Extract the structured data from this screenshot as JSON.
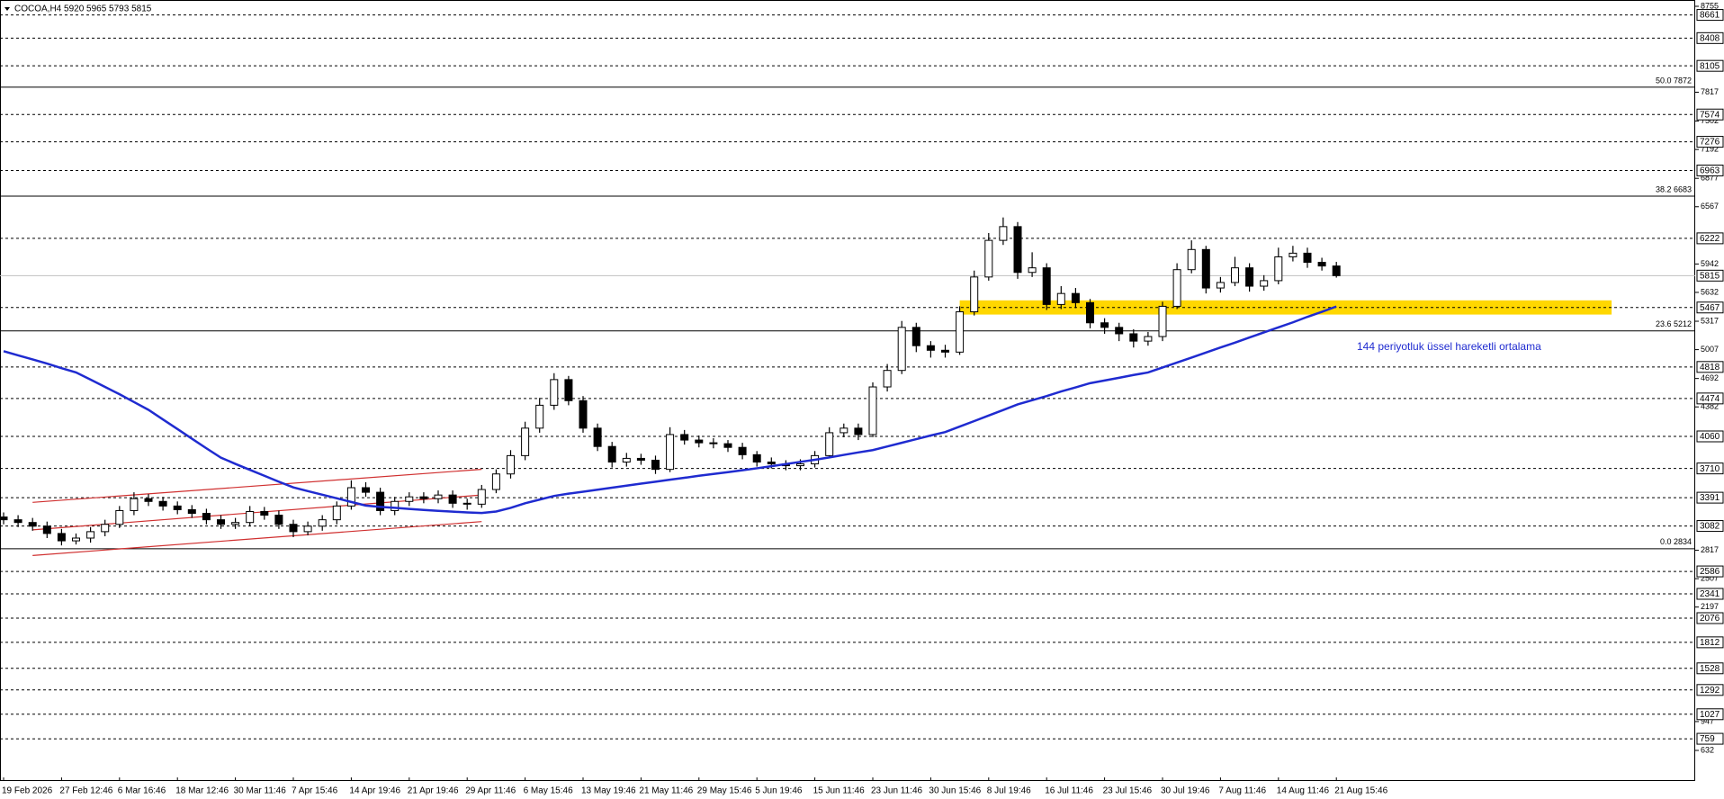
{
  "chart_data": {
    "type": "candlestick",
    "title": "COCOA,H4  5920 5965 5793 5815",
    "categories": [
      "19 Feb 2026",
      null,
      null,
      null,
      "27 Feb 12:46",
      null,
      null,
      null,
      "6 Mar 16:46",
      null,
      null,
      null,
      "18 Mar 12:46",
      null,
      null,
      null,
      "30 Mar 11:46",
      null,
      null,
      null,
      "7 Apr 15:46",
      null,
      null,
      null,
      "14 Apr 19:46",
      null,
      null,
      null,
      "21 Apr 19:46",
      null,
      null,
      null,
      "29 Apr 11:46",
      null,
      null,
      null,
      "6 May 15:46",
      null,
      null,
      null,
      "13 May 19:46",
      null,
      null,
      null,
      "21 May 11:46",
      null,
      null,
      null,
      "29 May 15:46",
      null,
      null,
      null,
      "5 Jun 19:46",
      null,
      null,
      null,
      "15 Jun 11:46",
      null,
      null,
      null,
      "23 Jun 11:46",
      null,
      null,
      null,
      "30 Jun 15:46",
      null,
      null,
      null,
      "8 Jul 19:46",
      null,
      null,
      null,
      "16 Jul 11:46",
      null,
      null,
      null,
      "23 Jul 15:46",
      null,
      null,
      null,
      "30 Jul 19:46",
      null,
      null,
      null,
      "7 Aug 11:46",
      null,
      null,
      null,
      "14 Aug 11:46",
      null,
      null,
      null,
      "21 Aug 15:46"
    ],
    "open": [
      3180,
      3150,
      3120,
      3080,
      3000,
      2920,
      2950,
      3020,
      3100,
      3250,
      3380,
      3350,
      3300,
      3260,
      3220,
      3150,
      3100,
      3120,
      3240,
      3200,
      3100,
      3020,
      3080,
      3150,
      3300,
      3500,
      3450,
      3250,
      3350,
      3400,
      3380,
      3420,
      3330,
      3320,
      3480,
      3650,
      3850,
      4150,
      4400,
      4680,
      4450,
      4150,
      3950,
      3780,
      3820,
      3800,
      3700,
      4080,
      4020,
      3990,
      3980,
      3940,
      3860,
      3780,
      3760,
      3740,
      3760,
      3850,
      4100,
      4150,
      4080,
      4600,
      4780,
      5250,
      5050,
      5000,
      4980,
      5420,
      5800,
      6200,
      6350,
      5850,
      5900,
      5500,
      5620,
      5520,
      5300,
      5250,
      5180,
      5100,
      5150,
      5480,
      5880,
      6100,
      5680,
      5740,
      5900,
      5700,
      5760,
      6020,
      6060,
      5960,
      5920
    ],
    "high": [
      3230,
      3200,
      3170,
      3130,
      3050,
      3000,
      3070,
      3150,
      3300,
      3450,
      3430,
      3400,
      3350,
      3310,
      3270,
      3200,
      3170,
      3300,
      3290,
      3250,
      3150,
      3130,
      3200,
      3350,
      3580,
      3560,
      3500,
      3400,
      3450,
      3450,
      3470,
      3470,
      3380,
      3530,
      3700,
      3910,
      4220,
      4480,
      4750,
      4720,
      4500,
      4200,
      4000,
      3880,
      3870,
      3850,
      4160,
      4130,
      4070,
      4040,
      4020,
      3990,
      3900,
      3830,
      3800,
      3810,
      3900,
      4160,
      4200,
      4200,
      4650,
      4850,
      5320,
      5300,
      5100,
      5060,
      5480,
      5870,
      6280,
      6450,
      6400,
      6070,
      5950,
      5700,
      5680,
      5560,
      5350,
      5300,
      5230,
      5200,
      5530,
      5950,
      6200,
      6140,
      5800,
      6020,
      5950,
      5820,
      6120,
      6140,
      6120,
      6010,
      5965
    ],
    "low": [
      3100,
      3070,
      3030,
      2950,
      2870,
      2880,
      2900,
      2970,
      3060,
      3200,
      3300,
      3250,
      3210,
      3170,
      3100,
      3050,
      3050,
      3080,
      3150,
      3050,
      2960,
      2980,
      3030,
      3100,
      3260,
      3400,
      3200,
      3200,
      3300,
      3330,
      3330,
      3280,
      3260,
      3280,
      3440,
      3600,
      3800,
      4100,
      4350,
      4400,
      4100,
      3900,
      3720,
      3730,
      3750,
      3650,
      3670,
      3970,
      3940,
      3930,
      3890,
      3810,
      3730,
      3710,
      3690,
      3690,
      3720,
      3820,
      4050,
      4020,
      4050,
      4550,
      4740,
      4980,
      4920,
      4920,
      4950,
      5380,
      5760,
      6150,
      5780,
      5800,
      5440,
      5450,
      5460,
      5240,
      5180,
      5100,
      5030,
      5050,
      5100,
      5450,
      5840,
      5620,
      5630,
      5700,
      5640,
      5650,
      5720,
      5970,
      5900,
      5870,
      5793
    ],
    "close": [
      3150,
      3120,
      3080,
      3000,
      2920,
      2950,
      3020,
      3100,
      3250,
      3380,
      3350,
      3300,
      3260,
      3220,
      3150,
      3100,
      3120,
      3240,
      3200,
      3100,
      3020,
      3080,
      3150,
      3300,
      3500,
      3450,
      3250,
      3350,
      3400,
      3380,
      3420,
      3330,
      3320,
      3480,
      3650,
      3850,
      4150,
      4400,
      4680,
      4450,
      4150,
      3950,
      3780,
      3820,
      3800,
      3700,
      4080,
      4020,
      3990,
      3980,
      3940,
      3860,
      3780,
      3760,
      3740,
      3760,
      3850,
      4100,
      4150,
      4080,
      4600,
      4780,
      5250,
      5050,
      5000,
      4980,
      5420,
      5800,
      6200,
      6350,
      5850,
      5900,
      5500,
      5620,
      5520,
      5300,
      5250,
      5180,
      5100,
      5150,
      5480,
      5880,
      6100,
      5680,
      5740,
      5900,
      5700,
      5760,
      6020,
      6060,
      5960,
      5920,
      5815
    ],
    "up_color": "#ffffff",
    "down_color": "#000000",
    "ylim": [
      632,
      8755
    ],
    "yticks": [
      8755,
      7817,
      7502,
      7192,
      6877,
      6567,
      5942,
      5632,
      5317,
      5007,
      4692,
      4382,
      2817,
      2507,
      2197,
      947,
      632
    ],
    "levels": [
      8661,
      8408,
      8105,
      7574,
      7276,
      6963,
      6222,
      5467,
      4818,
      4474,
      4060,
      3710,
      3391,
      3082,
      2586,
      2341,
      2076,
      1812,
      1528,
      1292,
      1027,
      759
    ],
    "last_price": 5815,
    "fib": [
      {
        "label": "50.0 7872",
        "value": 7872
      },
      {
        "label": "38.2 6683",
        "value": 6683
      },
      {
        "label": "23.6 5212",
        "value": 5212
      },
      {
        "label": "0.0 2834",
        "value": 2834
      }
    ],
    "ema": {
      "name": "144 periyotluk üssel hareketli ortalama",
      "color": "#1f2bd0",
      "values": [
        4990,
        4945,
        4900,
        4855,
        4805,
        4758,
        4680,
        4600,
        4520,
        4435,
        4350,
        4245,
        4140,
        4035,
        3930,
        3828,
        3760,
        3695,
        3630,
        3565,
        3503,
        3463,
        3423,
        3384,
        3344,
        3305,
        3290,
        3280,
        3268,
        3257,
        3247,
        3238,
        3230,
        3224,
        3240,
        3280,
        3330,
        3370,
        3410,
        3435,
        3456,
        3478,
        3500,
        3522,
        3544,
        3565,
        3587,
        3608,
        3630,
        3650,
        3670,
        3690,
        3712,
        3735,
        3758,
        3782,
        3805,
        3830,
        3858,
        3885,
        3910,
        3950,
        3990,
        4030,
        4070,
        4107,
        4167,
        4227,
        4288,
        4348,
        4409,
        4455,
        4500,
        4550,
        4595,
        4641,
        4670,
        4700,
        4730,
        4758,
        4812,
        4866,
        4920,
        4975,
        5030,
        5083,
        5140,
        5195,
        5250,
        5305,
        5365,
        5420,
        5478
      ]
    },
    "channel": {
      "color": "#d03030",
      "lines": [
        {
          "x": [
            2,
            33
          ],
          "y": [
            3340,
            3700
          ]
        },
        {
          "x": [
            2,
            33
          ],
          "y": [
            3040,
            3420
          ]
        },
        {
          "x": [
            2,
            33
          ],
          "y": [
            2760,
            3130
          ]
        }
      ]
    },
    "zone": {
      "color": "#ffd700",
      "x": [
        66,
        111
      ],
      "y": [
        5390,
        5545
      ]
    }
  }
}
